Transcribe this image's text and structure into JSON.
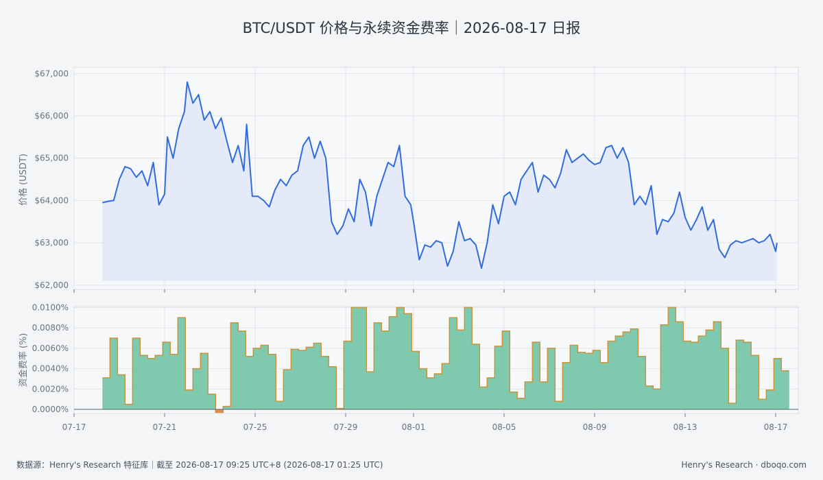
{
  "chart_data": [
    {
      "type": "area",
      "title": "BTC/USDT 价格与永续资金费率｜2026-08-17 日报",
      "ylabel": "价格 (USDT)",
      "xlabel": "",
      "x_range": [
        "2026-07-17",
        "2026-08-18"
      ],
      "ylim": [
        61900,
        67150
      ],
      "y_ticks": [
        62000,
        63000,
        64000,
        65000,
        66000,
        67000
      ],
      "y_tick_labels": [
        "$62,000",
        "$63,000",
        "$64,000",
        "$65,000",
        "$66,000",
        "$67,000"
      ],
      "grid": true,
      "series": [
        {
          "color": "#2f6be0",
          "fill": "#e4eaf7",
          "points": [
            [
              "2026-07-18T06:00",
              63950
            ],
            [
              "2026-07-18T12:00",
              63980
            ],
            [
              "2026-07-18T18:00",
              64000
            ],
            [
              "2026-07-19T00:00",
              64500
            ],
            [
              "2026-07-19T06:00",
              64800
            ],
            [
              "2026-07-19T12:00",
              64750
            ],
            [
              "2026-07-19T18:00",
              64550
            ],
            [
              "2026-07-20T00:00",
              64700
            ],
            [
              "2026-07-20T06:00",
              64350
            ],
            [
              "2026-07-20T12:00",
              64900
            ],
            [
              "2026-07-20T18:00",
              63900
            ],
            [
              "2026-07-21T00:00",
              64150
            ],
            [
              "2026-07-21T03:00",
              65500
            ],
            [
              "2026-07-21T09:00",
              65000
            ],
            [
              "2026-07-21T15:00",
              65700
            ],
            [
              "2026-07-21T21:00",
              66100
            ],
            [
              "2026-07-22T00:00",
              66800
            ],
            [
              "2026-07-22T06:00",
              66300
            ],
            [
              "2026-07-22T12:00",
              66500
            ],
            [
              "2026-07-22T18:00",
              65900
            ],
            [
              "2026-07-23T00:00",
              66100
            ],
            [
              "2026-07-23T06:00",
              65700
            ],
            [
              "2026-07-23T12:00",
              65950
            ],
            [
              "2026-07-23T18:00",
              65400
            ],
            [
              "2026-07-24T00:00",
              64900
            ],
            [
              "2026-07-24T06:00",
              65300
            ],
            [
              "2026-07-24T12:00",
              64700
            ],
            [
              "2026-07-24T15:00",
              65800
            ],
            [
              "2026-07-24T21:00",
              64100
            ],
            [
              "2026-07-25T03:00",
              64100
            ],
            [
              "2026-07-25T09:00",
              64000
            ],
            [
              "2026-07-25T15:00",
              63850
            ],
            [
              "2026-07-25T21:00",
              64250
            ],
            [
              "2026-07-26T03:00",
              64500
            ],
            [
              "2026-07-26T09:00",
              64350
            ],
            [
              "2026-07-26T15:00",
              64600
            ],
            [
              "2026-07-26T21:00",
              64700
            ],
            [
              "2026-07-27T03:00",
              65300
            ],
            [
              "2026-07-27T09:00",
              65500
            ],
            [
              "2026-07-27T15:00",
              65000
            ],
            [
              "2026-07-27T21:00",
              65400
            ],
            [
              "2026-07-28T03:00",
              65000
            ],
            [
              "2026-07-28T09:00",
              63500
            ],
            [
              "2026-07-28T15:00",
              63200
            ],
            [
              "2026-07-28T21:00",
              63400
            ],
            [
              "2026-07-29T03:00",
              63800
            ],
            [
              "2026-07-29T09:00",
              63500
            ],
            [
              "2026-07-29T15:00",
              64500
            ],
            [
              "2026-07-29T21:00",
              64200
            ],
            [
              "2026-07-30T03:00",
              63400
            ],
            [
              "2026-07-30T09:00",
              64100
            ],
            [
              "2026-07-30T15:00",
              64500
            ],
            [
              "2026-07-30T21:00",
              64900
            ],
            [
              "2026-07-31T03:00",
              64800
            ],
            [
              "2026-07-31T09:00",
              65300
            ],
            [
              "2026-07-31T15:00",
              64100
            ],
            [
              "2026-07-31T21:00",
              63900
            ],
            [
              "2026-08-01T00:00",
              63500
            ],
            [
              "2026-08-01T06:00",
              62600
            ],
            [
              "2026-08-01T12:00",
              62950
            ],
            [
              "2026-08-01T18:00",
              62900
            ],
            [
              "2026-08-02T00:00",
              63050
            ],
            [
              "2026-08-02T06:00",
              63000
            ],
            [
              "2026-08-02T12:00",
              62450
            ],
            [
              "2026-08-02T18:00",
              62800
            ],
            [
              "2026-08-03T00:00",
              63500
            ],
            [
              "2026-08-03T06:00",
              63050
            ],
            [
              "2026-08-03T12:00",
              63100
            ],
            [
              "2026-08-03T18:00",
              62950
            ],
            [
              "2026-08-04T00:00",
              62400
            ],
            [
              "2026-08-04T06:00",
              63000
            ],
            [
              "2026-08-04T12:00",
              63900
            ],
            [
              "2026-08-04T18:00",
              63450
            ],
            [
              "2026-08-05T00:00",
              64100
            ],
            [
              "2026-08-05T06:00",
              64200
            ],
            [
              "2026-08-05T12:00",
              63900
            ],
            [
              "2026-08-05T18:00",
              64500
            ],
            [
              "2026-08-06T00:00",
              64700
            ],
            [
              "2026-08-06T06:00",
              64900
            ],
            [
              "2026-08-06T12:00",
              64200
            ],
            [
              "2026-08-06T18:00",
              64600
            ],
            [
              "2026-08-07T00:00",
              64500
            ],
            [
              "2026-08-07T06:00",
              64300
            ],
            [
              "2026-08-07T12:00",
              64650
            ],
            [
              "2026-08-07T18:00",
              65200
            ],
            [
              "2026-08-08T00:00",
              64900
            ],
            [
              "2026-08-08T06:00",
              65000
            ],
            [
              "2026-08-08T12:00",
              65100
            ],
            [
              "2026-08-08T18:00",
              64950
            ],
            [
              "2026-08-09T00:00",
              64850
            ],
            [
              "2026-08-09T06:00",
              64900
            ],
            [
              "2026-08-09T12:00",
              65250
            ],
            [
              "2026-08-09T18:00",
              65300
            ],
            [
              "2026-08-10T00:00",
              65000
            ],
            [
              "2026-08-10T06:00",
              65250
            ],
            [
              "2026-08-10T12:00",
              64900
            ],
            [
              "2026-08-10T18:00",
              63900
            ],
            [
              "2026-08-11T00:00",
              64100
            ],
            [
              "2026-08-11T06:00",
              63900
            ],
            [
              "2026-08-11T12:00",
              64350
            ],
            [
              "2026-08-11T18:00",
              63200
            ],
            [
              "2026-08-12T00:00",
              63550
            ],
            [
              "2026-08-12T06:00",
              63500
            ],
            [
              "2026-08-12T12:00",
              63700
            ],
            [
              "2026-08-12T18:00",
              64200
            ],
            [
              "2026-08-13T00:00",
              63600
            ],
            [
              "2026-08-13T06:00",
              63300
            ],
            [
              "2026-08-13T12:00",
              63550
            ],
            [
              "2026-08-13T18:00",
              63850
            ],
            [
              "2026-08-14T00:00",
              63300
            ],
            [
              "2026-08-14T06:00",
              63550
            ],
            [
              "2026-08-14T12:00",
              62850
            ],
            [
              "2026-08-14T18:00",
              62650
            ],
            [
              "2026-08-15T00:00",
              62950
            ],
            [
              "2026-08-15T06:00",
              63050
            ],
            [
              "2026-08-15T12:00",
              63000
            ],
            [
              "2026-08-15T18:00",
              63050
            ],
            [
              "2026-08-16T00:00",
              63100
            ],
            [
              "2026-08-16T06:00",
              63000
            ],
            [
              "2026-08-16T12:00",
              63050
            ],
            [
              "2026-08-16T18:00",
              63200
            ],
            [
              "2026-08-17T00:00",
              62800
            ],
            [
              "2026-08-17T01:25",
              63000
            ]
          ]
        }
      ],
      "x_ticks": [
        "07-17",
        "07-21",
        "07-25",
        "07-29",
        "08-01",
        "08-05",
        "08-09",
        "08-13",
        "08-17"
      ],
      "x_tick_dates": [
        "2026-07-17",
        "2026-07-21",
        "2026-07-25",
        "2026-07-29",
        "2026-08-01",
        "2026-08-05",
        "2026-08-09",
        "2026-08-13",
        "2026-08-17"
      ]
    },
    {
      "type": "area",
      "title": "",
      "ylabel": "资金费率 (%)",
      "xlabel": "",
      "x_range": [
        "2026-07-17",
        "2026-08-18"
      ],
      "ylim": [
        -0.0004,
        0.0101
      ],
      "y_ticks": [
        0,
        0.002,
        0.004,
        0.006,
        0.008,
        0.01
      ],
      "y_tick_labels": [
        "0.0000%",
        "0.0020%",
        "0.0040%",
        "0.0060%",
        "0.0080%",
        "0.0100%"
      ],
      "grid": true,
      "interval_hours": 8,
      "start": "2026-07-18T06:00",
      "series": [
        {
          "fill": "#7fcaae",
          "line": "#c8953a",
          "values": [
            0.0031,
            0.007,
            0.0034,
            0.0005,
            0.007,
            0.0053,
            0.005,
            0.0053,
            0.0066,
            0.0054,
            0.009,
            0.0019,
            0.004,
            0.0055,
            0.0015,
            -0.0003,
            0.0003,
            0.0085,
            0.0077,
            0.0052,
            0.006,
            0.0063,
            0.0054,
            0.0008,
            0.0039,
            0.0059,
            0.0058,
            0.0061,
            0.0065,
            0.0052,
            0.0042,
            0.0001,
            0.0067,
            0.01,
            0.01,
            0.0037,
            0.0085,
            0.0077,
            0.0091,
            0.01,
            0.0094,
            0.0057,
            0.004,
            0.0031,
            0.0035,
            0.0045,
            0.009,
            0.0078,
            0.01,
            0.0064,
            0.0022,
            0.0031,
            0.0062,
            0.0077,
            0.0017,
            0.0011,
            0.0027,
            0.0066,
            0.0027,
            0.006,
            0.0008,
            0.0046,
            0.0063,
            0.0056,
            0.0055,
            0.0058,
            0.0046,
            0.0067,
            0.0072,
            0.0076,
            0.0079,
            0.0052,
            0.0023,
            0.002,
            0.0083,
            0.01,
            0.0086,
            0.0067,
            0.0066,
            0.0072,
            0.0078,
            0.0086,
            0.006,
            0.0006,
            0.0068,
            0.0066,
            0.0053,
            0.001,
            0.0019,
            0.005,
            0.0038
          ]
        }
      ],
      "x_ticks": [
        "07-17",
        "07-21",
        "07-25",
        "07-29",
        "08-01",
        "08-05",
        "08-09",
        "08-13",
        "08-17"
      ],
      "x_tick_dates": [
        "2026-07-17",
        "2026-07-21",
        "2026-07-25",
        "2026-07-29",
        "2026-08-01",
        "2026-08-05",
        "2026-08-09",
        "2026-08-13",
        "2026-08-17"
      ]
    }
  ],
  "footer": {
    "source": "数据源：Henry's Research 特征库｜截至 2026-08-17 09:25 UTC+8 (2026-08-17 01:25 UTC)",
    "brand": "Henry's Research · dboqo.com"
  },
  "colors": {
    "background": "#f4f5f7",
    "panel": "#f7f8fa",
    "price_line": "#2f6be0",
    "price_fill": "#e4eaf7",
    "funding_fill": "#7fcaae",
    "funding_line": "#c8953a"
  }
}
